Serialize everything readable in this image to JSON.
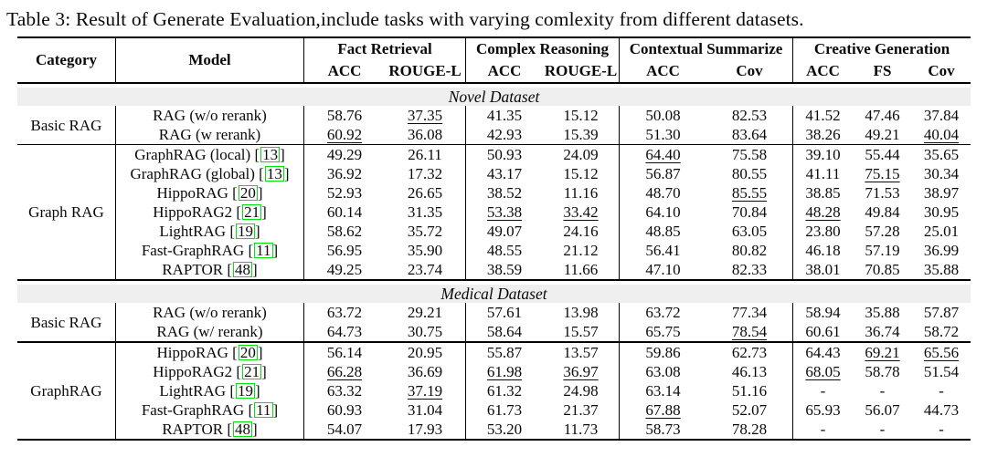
{
  "title": "Table 3: Result of Generate Evaluation,include tasks with varying comlexity from different datasets.",
  "colors": {
    "citation_box": "#00e30b",
    "banner_background": "#efefef",
    "rule": "#000000",
    "text": "#0a0a0a"
  },
  "header": {
    "category": "Category",
    "model": "Model",
    "groups": [
      {
        "label": "Fact Retrieval",
        "cols": [
          "ACC",
          "ROUGE-L"
        ]
      },
      {
        "label": "Complex Reasoning",
        "cols": [
          "ACC",
          "ROUGE-L"
        ]
      },
      {
        "label": "Contextual Summarize",
        "cols": [
          "ACC",
          "Cov"
        ]
      },
      {
        "label": "Creative Generation",
        "cols": [
          "ACC",
          "FS",
          "Cov"
        ]
      }
    ]
  },
  "chart_data": {
    "type": "table",
    "title": "Table 3: Result of Generate Evaluation,include tasks with varying comlexity from different datasets.",
    "columns": [
      "Category",
      "Model",
      "Fact Retrieval ACC",
      "Fact Retrieval ROUGE-L",
      "Complex Reasoning ACC",
      "Complex Reasoning ROUGE-L",
      "Contextual Summarize ACC",
      "Contextual Summarize Cov",
      "Creative Generation ACC",
      "Creative Generation FS",
      "Creative Generation Cov"
    ]
  },
  "sections": [
    {
      "banner": "Novel Dataset",
      "groups": [
        {
          "category": "Basic RAG",
          "rows": [
            {
              "model": "RAG (w/o rerank)",
              "cite": null,
              "values": [
                "58.76",
                "37.35",
                "41.35",
                "15.12",
                "50.08",
                "82.53",
                "41.52",
                "47.46",
                "37.84"
              ],
              "u": [
                1
              ]
            },
            {
              "model": "RAG (w rerank)",
              "cite": null,
              "values": [
                "60.92",
                "36.08",
                "42.93",
                "15.39",
                "51.30",
                "83.64",
                "38.26",
                "49.21",
                "40.04"
              ],
              "u": [
                0,
                8
              ]
            }
          ]
        },
        {
          "category": "Graph RAG",
          "rows": [
            {
              "model": "GraphRAG (local)",
              "cite": "13",
              "values": [
                "49.29",
                "26.11",
                "50.93",
                "24.09",
                "64.40",
                "75.58",
                "39.10",
                "55.44",
                "35.65"
              ],
              "u": [
                4
              ]
            },
            {
              "model": "GraphRAG (global)",
              "cite": "13",
              "values": [
                "36.92",
                "17.32",
                "43.17",
                "15.12",
                "56.87",
                "80.55",
                "41.11",
                "75.15",
                "30.34"
              ],
              "u": [
                7
              ]
            },
            {
              "model": "HippoRAG",
              "cite": "20",
              "values": [
                "52.93",
                "26.65",
                "38.52",
                "11.16",
                "48.70",
                "85.55",
                "38.85",
                "71.53",
                "38.97"
              ],
              "u": [
                5
              ]
            },
            {
              "model": "HippoRAG2",
              "cite": "21",
              "values": [
                "60.14",
                "31.35",
                "53.38",
                "33.42",
                "64.10",
                "70.84",
                "48.28",
                "49.84",
                "30.95"
              ],
              "u": [
                2,
                3,
                6
              ]
            },
            {
              "model": "LightRAG",
              "cite": "19",
              "values": [
                "58.62",
                "35.72",
                "49.07",
                "24.16",
                "48.85",
                "63.05",
                "23.80",
                "57.28",
                "25.01"
              ],
              "u": []
            },
            {
              "model": "Fast-GraphRAG",
              "cite": "11",
              "values": [
                "56.95",
                "35.90",
                "48.55",
                "21.12",
                "56.41",
                "80.82",
                "46.18",
                "57.19",
                "36.99"
              ],
              "u": []
            },
            {
              "model": "RAPTOR",
              "cite": "48",
              "values": [
                "49.25",
                "23.74",
                "38.59",
                "11.66",
                "47.10",
                "82.33",
                "38.01",
                "70.85",
                "35.88"
              ],
              "u": []
            }
          ]
        }
      ]
    },
    {
      "banner": "Medical Dataset",
      "groups": [
        {
          "category": "Basic RAG",
          "rows": [
            {
              "model": "RAG (w/o rerank)",
              "cite": null,
              "values": [
                "63.72",
                "29.21",
                "57.61",
                "13.98",
                "63.72",
                "77.34",
                "58.94",
                "35.88",
                "57.87"
              ],
              "u": []
            },
            {
              "model": "RAG (w/ rerank)",
              "cite": null,
              "values": [
                "64.73",
                "30.75",
                "58.64",
                "15.57",
                "65.75",
                "78.54",
                "60.61",
                "36.74",
                "58.72"
              ],
              "u": [
                5
              ]
            }
          ]
        },
        {
          "category": "GraphRAG",
          "rows": [
            {
              "model": "HippoRAG",
              "cite": "20",
              "values": [
                "56.14",
                "20.95",
                "55.87",
                "13.57",
                "59.86",
                "62.73",
                "64.43",
                "69.21",
                "65.56"
              ],
              "u": [
                7,
                8
              ]
            },
            {
              "model": "HippoRAG2",
              "cite": "21",
              "values": [
                "66.28",
                "36.69",
                "61.98",
                "36.97",
                "63.08",
                "46.13",
                "68.05",
                "58.78",
                "51.54"
              ],
              "u": [
                0,
                2,
                3,
                6
              ]
            },
            {
              "model": "LightRAG",
              "cite": "19",
              "values": [
                "63.32",
                "37.19",
                "61.32",
                "24.98",
                "63.14",
                "51.16",
                "-",
                "-",
                "-"
              ],
              "u": [
                1
              ]
            },
            {
              "model": "Fast-GraphRAG",
              "cite": "11",
              "values": [
                "60.93",
                "31.04",
                "61.73",
                "21.37",
                "67.88",
                "52.07",
                "65.93",
                "56.07",
                "44.73"
              ],
              "u": [
                4
              ]
            },
            {
              "model": "RAPTOR",
              "cite": "48",
              "values": [
                "54.07",
                "17.93",
                "53.20",
                "11.73",
                "58.73",
                "78.28",
                "-",
                "-",
                "-"
              ],
              "u": []
            }
          ]
        }
      ]
    }
  ]
}
